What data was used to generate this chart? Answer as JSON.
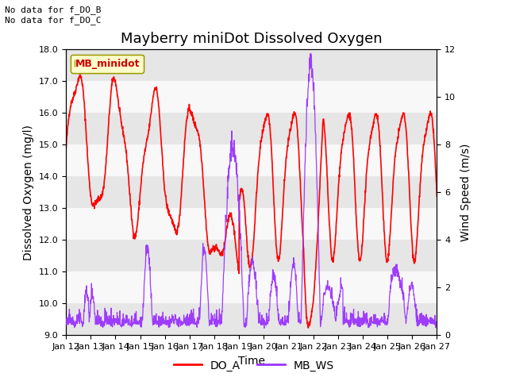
{
  "title": "Mayberry miniDot Dissolved Oxygen",
  "xlabel": "Time",
  "ylabel_left": "Dissolved Oxygen (mg/l)",
  "ylabel_right": "Wind Speed (m/s)",
  "annotation_text": "No data for f_DO_B\nNo data for f_DO_C",
  "legend_box_text": "MB_minidot",
  "legend_entries": [
    "DO_A",
    "MB_WS"
  ],
  "do_color": "#ff0000",
  "ws_color": "#9933ff",
  "ylim_left": [
    9.0,
    18.0
  ],
  "ylim_right": [
    0,
    12
  ],
  "yticks_left": [
    9.0,
    10.0,
    11.0,
    12.0,
    13.0,
    14.0,
    15.0,
    16.0,
    17.0,
    18.0
  ],
  "yticks_right": [
    0,
    2,
    4,
    6,
    8,
    10,
    12
  ],
  "xtick_labels": [
    "Jan 12",
    "Jan 13",
    "Jan 14",
    "Jan 15",
    "Jan 16",
    "Jan 17",
    "Jan 18",
    "Jan 19",
    "Jan 20",
    "Jan 21",
    "Jan 22",
    "Jan 23",
    "Jan 24",
    "Jan 25",
    "Jan 26",
    "Jan 27"
  ],
  "background_color": "#ffffff",
  "plot_bg_color": "#f2f2f2",
  "stripe_light": "#f8f8f8",
  "stripe_dark": "#e6e6e6",
  "title_fontsize": 13,
  "axis_label_fontsize": 10,
  "tick_fontsize": 8,
  "seed": 42
}
